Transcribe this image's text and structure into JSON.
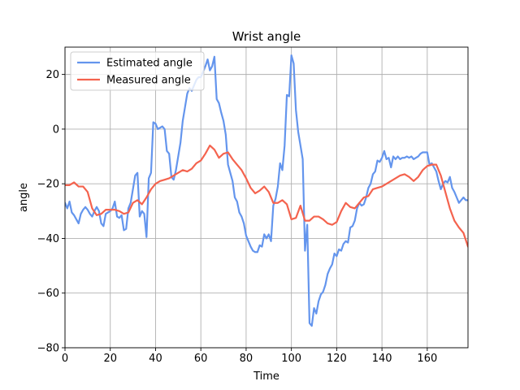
{
  "chart_data": {
    "type": "line",
    "title": "Wrist angle",
    "xlabel": "Time",
    "ylabel": "angle",
    "xlim": [
      0,
      178
    ],
    "ylim": [
      -80,
      30
    ],
    "xticks": [
      0,
      20,
      40,
      60,
      80,
      100,
      120,
      140,
      160
    ],
    "yticks": [
      -80,
      -60,
      -40,
      -20,
      0,
      20
    ],
    "grid": true,
    "legend_position": "top-left",
    "series": [
      {
        "name": "Estimated angle",
        "color": "#6495ED",
        "points": [
          [
            0,
            -27
          ],
          [
            1,
            -29
          ],
          [
            2,
            -26.5
          ],
          [
            3,
            -30.5
          ],
          [
            4,
            -31.5
          ],
          [
            5,
            -33
          ],
          [
            6,
            -34.5
          ],
          [
            7,
            -31
          ],
          [
            8,
            -29.5
          ],
          [
            9,
            -28.5
          ],
          [
            10,
            -29.5
          ],
          [
            11,
            -31
          ],
          [
            12,
            -32
          ],
          [
            13,
            -30
          ],
          [
            14,
            -28.5
          ],
          [
            15,
            -30
          ],
          [
            16,
            -34.5
          ],
          [
            17,
            -35.5
          ],
          [
            18,
            -31
          ],
          [
            19,
            -30.5
          ],
          [
            20,
            -30
          ],
          [
            21,
            -29
          ],
          [
            22,
            -26.5
          ],
          [
            23,
            -32
          ],
          [
            24,
            -32.5
          ],
          [
            25,
            -31.5
          ],
          [
            26,
            -37
          ],
          [
            27,
            -36.5
          ],
          [
            28,
            -29
          ],
          [
            29,
            -27
          ],
          [
            30,
            -22
          ],
          [
            31,
            -17
          ],
          [
            32,
            -16
          ],
          [
            33,
            -32
          ],
          [
            34,
            -30
          ],
          [
            35,
            -31
          ],
          [
            36,
            -39.5
          ],
          [
            37,
            -18
          ],
          [
            38,
            -16
          ],
          [
            39,
            2.5
          ],
          [
            40,
            2
          ],
          [
            41,
            0
          ],
          [
            42,
            0.5
          ],
          [
            43,
            1
          ],
          [
            44,
            0
          ],
          [
            45,
            -8
          ],
          [
            46,
            -9
          ],
          [
            47,
            -17.5
          ],
          [
            48,
            -18.5
          ],
          [
            49,
            -15
          ],
          [
            50,
            -10
          ],
          [
            51,
            -5
          ],
          [
            52,
            3
          ],
          [
            53,
            8
          ],
          [
            54,
            13
          ],
          [
            55,
            15
          ],
          [
            56,
            14
          ],
          [
            57,
            16
          ],
          [
            58,
            18
          ],
          [
            59,
            19
          ],
          [
            60,
            19
          ],
          [
            61,
            21
          ],
          [
            62,
            23
          ],
          [
            63,
            25.5
          ],
          [
            64,
            21.5
          ],
          [
            65,
            23
          ],
          [
            66,
            26.5
          ],
          [
            67,
            11
          ],
          [
            68,
            9.5
          ],
          [
            69,
            6
          ],
          [
            70,
            3
          ],
          [
            71,
            -2
          ],
          [
            72,
            -13
          ],
          [
            73,
            -16
          ],
          [
            74,
            -19
          ],
          [
            75,
            -25
          ],
          [
            76,
            -26.5
          ],
          [
            77,
            -30.5
          ],
          [
            78,
            -32
          ],
          [
            79,
            -34.5
          ],
          [
            80,
            -39
          ],
          [
            81,
            -41
          ],
          [
            82,
            -43
          ],
          [
            83,
            -44.5
          ],
          [
            84,
            -45
          ],
          [
            85,
            -45
          ],
          [
            86,
            -42.5
          ],
          [
            87,
            -43
          ],
          [
            88,
            -38.5
          ],
          [
            89,
            -40
          ],
          [
            90,
            -38.5
          ],
          [
            91,
            -41
          ],
          [
            92,
            -28
          ],
          [
            93,
            -25.5
          ],
          [
            94,
            -21
          ],
          [
            95,
            -12.5
          ],
          [
            96,
            -15
          ],
          [
            97,
            -6
          ],
          [
            98,
            12.5
          ],
          [
            99,
            12
          ],
          [
            100,
            27
          ],
          [
            101,
            24
          ],
          [
            102,
            7
          ],
          [
            103,
            -1
          ],
          [
            104,
            -6
          ],
          [
            105,
            -11
          ],
          [
            106,
            -44.5
          ],
          [
            107,
            -35
          ],
          [
            108,
            -71
          ],
          [
            109,
            -72
          ],
          [
            110,
            -65.5
          ],
          [
            111,
            -67.5
          ],
          [
            112,
            -63
          ],
          [
            113,
            -60.5
          ],
          [
            114,
            -59.5
          ],
          [
            115,
            -57
          ],
          [
            116,
            -53
          ],
          [
            117,
            -51
          ],
          [
            118,
            -49.5
          ],
          [
            119,
            -45.5
          ],
          [
            120,
            -46.5
          ],
          [
            121,
            -44
          ],
          [
            122,
            -44.5
          ],
          [
            123,
            -42
          ],
          [
            124,
            -41
          ],
          [
            125,
            -41.5
          ],
          [
            126,
            -36
          ],
          [
            127,
            -35.5
          ],
          [
            128,
            -33.5
          ],
          [
            129,
            -29
          ],
          [
            130,
            -27
          ],
          [
            131,
            -28
          ],
          [
            132,
            -27.5
          ],
          [
            133,
            -25
          ],
          [
            134,
            -21.5
          ],
          [
            135,
            -20
          ],
          [
            136,
            -16.5
          ],
          [
            137,
            -15.5
          ],
          [
            138,
            -11.5
          ],
          [
            139,
            -12
          ],
          [
            140,
            -10.5
          ],
          [
            141,
            -8
          ],
          [
            142,
            -11
          ],
          [
            143,
            -10.5
          ],
          [
            144,
            -14
          ],
          [
            145,
            -10
          ],
          [
            146,
            -11
          ],
          [
            147,
            -10
          ],
          [
            148,
            -11
          ],
          [
            149,
            -10.5
          ],
          [
            150,
            -10.5
          ],
          [
            151,
            -10
          ],
          [
            152,
            -10.5
          ],
          [
            153,
            -10
          ],
          [
            154,
            -11
          ],
          [
            155,
            -10.5
          ],
          [
            156,
            -10
          ],
          [
            157,
            -9
          ],
          [
            158,
            -8.5
          ],
          [
            159,
            -8.5
          ],
          [
            160,
            -8.5
          ],
          [
            161,
            -13
          ],
          [
            162,
            -12.5
          ],
          [
            163,
            -14
          ],
          [
            164,
            -15.5
          ],
          [
            165,
            -19
          ],
          [
            166,
            -22
          ],
          [
            167,
            -20
          ],
          [
            168,
            -19
          ],
          [
            169,
            -19.5
          ],
          [
            170,
            -17.5
          ],
          [
            171,
            -21.5
          ],
          [
            172,
            -23
          ],
          [
            173,
            -25
          ],
          [
            174,
            -27
          ],
          [
            175,
            -26
          ],
          [
            176,
            -25
          ],
          [
            177,
            -26
          ],
          [
            178,
            -26
          ]
        ]
      },
      {
        "name": "Measured angle",
        "color": "#F4634E",
        "points": [
          [
            0,
            -20.5
          ],
          [
            2,
            -20.5
          ],
          [
            4,
            -19.5
          ],
          [
            6,
            -21
          ],
          [
            8,
            -21
          ],
          [
            10,
            -23
          ],
          [
            12,
            -29
          ],
          [
            14,
            -31.5
          ],
          [
            16,
            -31
          ],
          [
            18,
            -29.5
          ],
          [
            20,
            -29.5
          ],
          [
            22,
            -29.5
          ],
          [
            24,
            -30
          ],
          [
            26,
            -31
          ],
          [
            28,
            -30.5
          ],
          [
            30,
            -27
          ],
          [
            32,
            -26
          ],
          [
            34,
            -27.5
          ],
          [
            36,
            -25
          ],
          [
            38,
            -22
          ],
          [
            40,
            -20
          ],
          [
            42,
            -19
          ],
          [
            44,
            -18.5
          ],
          [
            46,
            -18
          ],
          [
            48,
            -17
          ],
          [
            50,
            -16
          ],
          [
            52,
            -15
          ],
          [
            54,
            -15.5
          ],
          [
            56,
            -14.5
          ],
          [
            58,
            -12.5
          ],
          [
            60,
            -11.5
          ],
          [
            62,
            -9
          ],
          [
            64,
            -6
          ],
          [
            66,
            -7.5
          ],
          [
            68,
            -10.5
          ],
          [
            70,
            -9
          ],
          [
            72,
            -8.5
          ],
          [
            74,
            -11
          ],
          [
            76,
            -13
          ],
          [
            78,
            -15
          ],
          [
            80,
            -18
          ],
          [
            82,
            -21.5
          ],
          [
            84,
            -23.5
          ],
          [
            86,
            -22.5
          ],
          [
            88,
            -21
          ],
          [
            90,
            -23
          ],
          [
            92,
            -27
          ],
          [
            94,
            -27
          ],
          [
            96,
            -26
          ],
          [
            98,
            -27.5
          ],
          [
            100,
            -33
          ],
          [
            102,
            -32.5
          ],
          [
            104,
            -28
          ],
          [
            106,
            -33.5
          ],
          [
            108,
            -33.5
          ],
          [
            110,
            -32
          ],
          [
            112,
            -32
          ],
          [
            114,
            -33
          ],
          [
            116,
            -34.5
          ],
          [
            118,
            -35
          ],
          [
            120,
            -34
          ],
          [
            122,
            -30
          ],
          [
            124,
            -27
          ],
          [
            126,
            -28.5
          ],
          [
            128,
            -29
          ],
          [
            130,
            -27
          ],
          [
            132,
            -25
          ],
          [
            134,
            -24.5
          ],
          [
            136,
            -22
          ],
          [
            138,
            -21.5
          ],
          [
            140,
            -21
          ],
          [
            142,
            -20
          ],
          [
            144,
            -19
          ],
          [
            146,
            -18
          ],
          [
            148,
            -17
          ],
          [
            150,
            -16.5
          ],
          [
            152,
            -17.5
          ],
          [
            154,
            -19
          ],
          [
            156,
            -17.5
          ],
          [
            158,
            -15
          ],
          [
            160,
            -13.5
          ],
          [
            162,
            -13
          ],
          [
            164,
            -13
          ],
          [
            166,
            -17
          ],
          [
            168,
            -23
          ],
          [
            170,
            -29
          ],
          [
            172,
            -33.5
          ],
          [
            174,
            -36
          ],
          [
            176,
            -38
          ],
          [
            178,
            -43
          ]
        ]
      }
    ]
  }
}
